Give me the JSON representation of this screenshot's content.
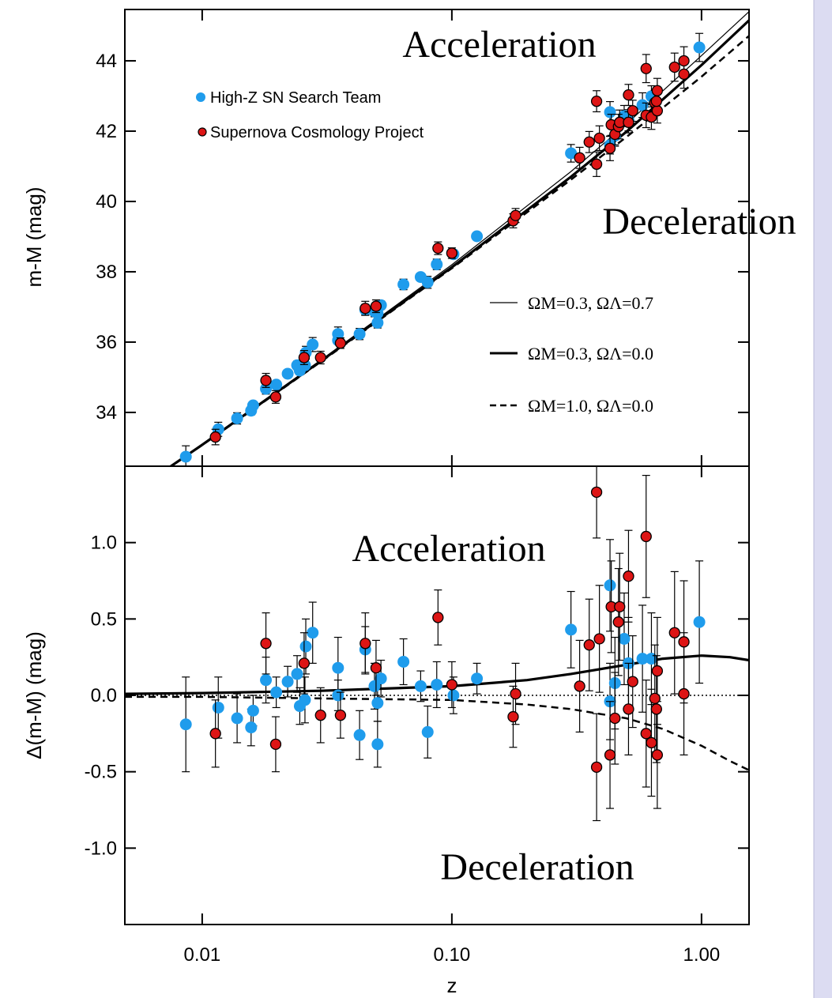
{
  "chart_data": [
    {
      "type": "scatter",
      "y_label": "m-M (mag)",
      "annotations": [
        "Acceleration",
        "Deceleration"
      ],
      "xlim": [
        0.0049,
        1.55
      ],
      "log_x": true,
      "ylim": [
        32.47,
        45.46
      ],
      "yticks": [
        34,
        36,
        38,
        40,
        42,
        44
      ],
      "series": [
        {
          "name": "ΩM=0.3, ΩΛ=0.7",
          "type": "line",
          "style": "thin",
          "color": "#000000",
          "x": [
            0.006,
            0.01,
            0.03,
            0.1,
            0.3,
            0.5,
            1.0,
            1.55
          ],
          "values": [
            32.0,
            33.1,
            35.5,
            38.2,
            40.85,
            42.2,
            44.15,
            45.4
          ]
        },
        {
          "name": "ΩM=0.3, ΩΛ=0.0",
          "type": "line",
          "style": "thick",
          "color": "#000000",
          "x": [
            0.006,
            0.01,
            0.03,
            0.1,
            0.3,
            0.5,
            1.0,
            1.55
          ],
          "values": [
            32.0,
            33.08,
            35.47,
            38.13,
            40.7,
            41.98,
            43.88,
            45.15
          ]
        },
        {
          "name": "ΩM=1.0, ΩΛ=0.0",
          "type": "line",
          "style": "dashed",
          "color": "#000000",
          "x": [
            0.006,
            0.01,
            0.03,
            0.1,
            0.3,
            0.5,
            1.0,
            1.55
          ],
          "values": [
            32.0,
            33.07,
            35.45,
            38.1,
            40.62,
            41.83,
            43.55,
            44.71
          ]
        },
        {
          "name": "High-Z SN Search Team",
          "type": "scatter",
          "color": "#1f9cec",
          "x": [
            0.0086,
            0.0116,
            0.0138,
            0.0157,
            0.016,
            0.018,
            0.0198,
            0.022,
            0.024,
            0.0246,
            0.0258,
            0.026,
            0.0277,
            0.035,
            0.035,
            0.0427,
            0.045,
            0.049,
            0.0504,
            0.0504,
            0.052,
            0.064,
            0.075,
            0.08,
            0.087,
            0.1015,
            0.126,
            0.3,
            0.43,
            0.43,
            0.45,
            0.49,
            0.51,
            0.58,
            0.63,
            0.98
          ],
          "values": [
            32.74,
            33.52,
            33.83,
            34.05,
            34.2,
            34.67,
            34.79,
            35.1,
            35.34,
            35.19,
            35.34,
            35.7,
            35.93,
            36.23,
            36.05,
            36.23,
            36.92,
            36.87,
            36.55,
            36.82,
            37.05,
            37.64,
            37.85,
            37.7,
            38.21,
            38.5,
            39.01,
            41.37,
            42.54,
            41.6,
            41.87,
            42.43,
            42.31,
            42.74,
            42.99,
            44.38
          ],
          "errors": [
            0.31,
            0.2,
            0.16,
            0.12,
            0.1,
            0.15,
            0.1,
            0.1,
            0.12,
            0.12,
            0.15,
            0.18,
            0.2,
            0.2,
            0.1,
            0.16,
            0.15,
            0.15,
            0.15,
            0.12,
            0.12,
            0.15,
            0.1,
            0.17,
            0.15,
            0.12,
            0.1,
            0.25,
            0.3,
            0.25,
            0.3,
            0.3,
            0.3,
            0.35,
            0.3,
            0.4
          ]
        },
        {
          "name": "Supernova Cosmology Project",
          "type": "scatter",
          "color": "#dd1515",
          "x": [
            0.0113,
            0.018,
            0.0197,
            0.0256,
            0.0298,
            0.0358,
            0.045,
            0.0497,
            0.088,
            0.1,
            0.176,
            0.18,
            0.325,
            0.355,
            0.38,
            0.38,
            0.39,
            0.43,
            0.435,
            0.45,
            0.465,
            0.47,
            0.51,
            0.51,
            0.53,
            0.6,
            0.6,
            0.63,
            0.65,
            0.665,
            0.665,
            0.66,
            0.78,
            0.85,
            0.85
          ],
          "values": [
            33.3,
            34.91,
            34.44,
            35.56,
            35.56,
            35.97,
            36.96,
            37.02,
            38.67,
            38.53,
            39.45,
            39.6,
            41.24,
            41.69,
            42.85,
            41.06,
            41.8,
            41.51,
            42.18,
            41.91,
            42.13,
            42.25,
            43.03,
            42.25,
            42.58,
            43.78,
            42.45,
            42.4,
            42.81,
            43.15,
            42.58,
            42.85,
            43.82,
            43.62,
            44.0
          ],
          "errors": [
            0.22,
            0.2,
            0.18,
            0.2,
            0.18,
            0.15,
            0.2,
            0.18,
            0.18,
            0.15,
            0.2,
            0.2,
            0.3,
            0.3,
            0.3,
            0.35,
            0.35,
            0.35,
            0.3,
            0.3,
            0.35,
            0.35,
            0.3,
            0.3,
            0.3,
            0.4,
            0.35,
            0.35,
            0.35,
            0.35,
            0.35,
            0.35,
            0.4,
            0.4,
            0.4
          ]
        }
      ]
    },
    {
      "type": "scatter",
      "x_label": "z",
      "y_label": "Δ(m-M) (mag)",
      "annotations": [
        "Acceleration",
        "Deceleration"
      ],
      "xlim": [
        0.0049,
        1.55
      ],
      "log_x": true,
      "xticks": [
        0.01,
        {
          "value": 0.1,
          "label": "0.10"
        },
        {
          "value": 1,
          "label": "1.00"
        }
      ],
      "ylim": [
        -1.5,
        1.5
      ],
      "yticks": [
        {
          "value": -1,
          "label": "-1.0"
        },
        -0.5,
        {
          "value": 0,
          "label": "0.0"
        },
        0.5,
        {
          "value": 1,
          "label": "1.0"
        }
      ],
      "series": [
        {
          "type": "line",
          "style": "thick",
          "color": "#000000",
          "x": [
            0.0049,
            0.01,
            0.03,
            0.1,
            0.2,
            0.3,
            0.5,
            0.7,
            1.0,
            1.3,
            1.55
          ],
          "values": [
            0.01,
            0.015,
            0.03,
            0.06,
            0.1,
            0.14,
            0.2,
            0.24,
            0.26,
            0.25,
            0.23
          ]
        },
        {
          "type": "line",
          "style": "dotted",
          "color": "#000000",
          "x": [
            0.0049,
            1.55
          ],
          "values": [
            0,
            0
          ]
        },
        {
          "type": "line",
          "style": "dashed",
          "color": "#000000",
          "x": [
            0.0049,
            0.01,
            0.03,
            0.1,
            0.2,
            0.3,
            0.5,
            0.7,
            1.0,
            1.3,
            1.55
          ],
          "values": [
            -0.01,
            -0.01,
            -0.02,
            -0.03,
            -0.06,
            -0.09,
            -0.15,
            -0.22,
            -0.33,
            -0.43,
            -0.49
          ]
        },
        {
          "type": "scatter",
          "color": "#1f9cec",
          "x": [
            0.0086,
            0.0116,
            0.0138,
            0.0157,
            0.016,
            0.018,
            0.0198,
            0.022,
            0.024,
            0.0246,
            0.0258,
            0.026,
            0.0277,
            0.035,
            0.035,
            0.0427,
            0.045,
            0.049,
            0.0504,
            0.0504,
            0.052,
            0.064,
            0.075,
            0.08,
            0.087,
            0.1015,
            0.126,
            0.3,
            0.43,
            0.43,
            0.45,
            0.49,
            0.51,
            0.58,
            0.63,
            0.98
          ],
          "values": [
            -0.19,
            -0.08,
            -0.15,
            -0.21,
            -0.1,
            0.1,
            0.02,
            0.09,
            0.14,
            -0.07,
            -0.03,
            0.32,
            0.41,
            0.18,
            0,
            -0.26,
            0.3,
            0.06,
            -0.32,
            -0.05,
            0.11,
            0.22,
            0.06,
            -0.24,
            0.07,
            0,
            0.11,
            0.43,
            0.72,
            -0.04,
            0.08,
            0.37,
            0.21,
            0.24,
            0.24,
            0.48
          ],
          "errors": [
            0.31,
            0.2,
            0.16,
            0.12,
            0.1,
            0.15,
            0.1,
            0.1,
            0.12,
            0.12,
            0.15,
            0.18,
            0.2,
            0.2,
            0.1,
            0.16,
            0.15,
            0.15,
            0.15,
            0.12,
            0.12,
            0.15,
            0.1,
            0.17,
            0.15,
            0.12,
            0.1,
            0.25,
            0.3,
            0.25,
            0.3,
            0.3,
            0.3,
            0.35,
            0.3,
            0.4
          ]
        },
        {
          "type": "scatter",
          "color": "#dd1515",
          "x": [
            0.0113,
            0.018,
            0.0197,
            0.0256,
            0.0298,
            0.0358,
            0.045,
            0.0497,
            0.088,
            0.1,
            0.176,
            0.18,
            0.325,
            0.355,
            0.38,
            0.38,
            0.39,
            0.43,
            0.435,
            0.45,
            0.465,
            0.47,
            0.51,
            0.51,
            0.53,
            0.6,
            0.6,
            0.63,
            0.65,
            0.665,
            0.665,
            0.66,
            0.78,
            0.85,
            0.85
          ],
          "values": [
            -0.25,
            0.34,
            -0.32,
            0.21,
            -0.13,
            -0.13,
            0.34,
            0.18,
            0.51,
            0.07,
            -0.14,
            0.01,
            0.06,
            0.33,
            1.33,
            -0.47,
            0.37,
            -0.39,
            0.58,
            -0.15,
            0.48,
            0.58,
            0.78,
            -0.09,
            0.09,
            1.04,
            -0.25,
            -0.31,
            -0.02,
            0.16,
            -0.39,
            -0.09,
            0.41,
            0.01,
            0.35
          ],
          "errors": [
            0.22,
            0.2,
            0.18,
            0.2,
            0.18,
            0.15,
            0.2,
            0.18,
            0.18,
            0.15,
            0.2,
            0.2,
            0.3,
            0.3,
            0.3,
            0.35,
            0.35,
            0.35,
            0.3,
            0.3,
            0.35,
            0.35,
            0.3,
            0.3,
            0.3,
            0.4,
            0.35,
            0.35,
            0.35,
            0.35,
            0.35,
            0.35,
            0.4,
            0.4,
            0.4
          ]
        }
      ]
    }
  ]
}
